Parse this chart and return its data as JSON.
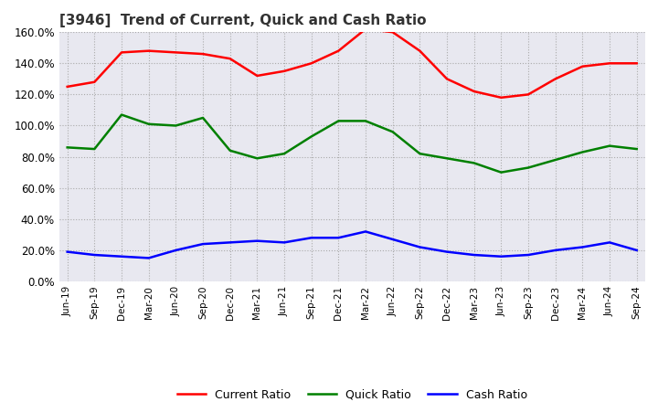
{
  "title": "[3946]  Trend of Current, Quick and Cash Ratio",
  "x_labels": [
    "Jun-19",
    "Sep-19",
    "Dec-19",
    "Mar-20",
    "Jun-20",
    "Sep-20",
    "Dec-20",
    "Mar-21",
    "Jun-21",
    "Sep-21",
    "Dec-21",
    "Mar-22",
    "Jun-22",
    "Sep-22",
    "Dec-22",
    "Mar-23",
    "Jun-23",
    "Sep-23",
    "Dec-23",
    "Mar-24",
    "Jun-24",
    "Sep-24"
  ],
  "current_ratio": [
    125.0,
    128.0,
    147.0,
    148.0,
    147.0,
    146.0,
    143.0,
    132.0,
    135.0,
    140.0,
    148.0,
    162.0,
    160.0,
    148.0,
    130.0,
    122.0,
    118.0,
    120.0,
    130.0,
    138.0,
    140.0,
    140.0
  ],
  "quick_ratio": [
    86.0,
    85.0,
    107.0,
    101.0,
    100.0,
    105.0,
    84.0,
    79.0,
    82.0,
    93.0,
    103.0,
    103.0,
    96.0,
    82.0,
    79.0,
    76.0,
    70.0,
    73.0,
    78.0,
    83.0,
    87.0,
    85.0
  ],
  "cash_ratio": [
    19.0,
    17.0,
    16.0,
    15.0,
    20.0,
    24.0,
    25.0,
    26.0,
    25.0,
    28.0,
    28.0,
    32.0,
    27.0,
    22.0,
    19.0,
    17.0,
    16.0,
    17.0,
    20.0,
    22.0,
    25.0,
    20.0
  ],
  "current_color": "#ff0000",
  "quick_color": "#008000",
  "cash_color": "#0000ff",
  "ylim": [
    0.0,
    160.0
  ],
  "ytick_step": 20.0,
  "background_color": "#ffffff",
  "grid_color": "#aaaaaa",
  "plot_bg_color": "#e8e8f0"
}
